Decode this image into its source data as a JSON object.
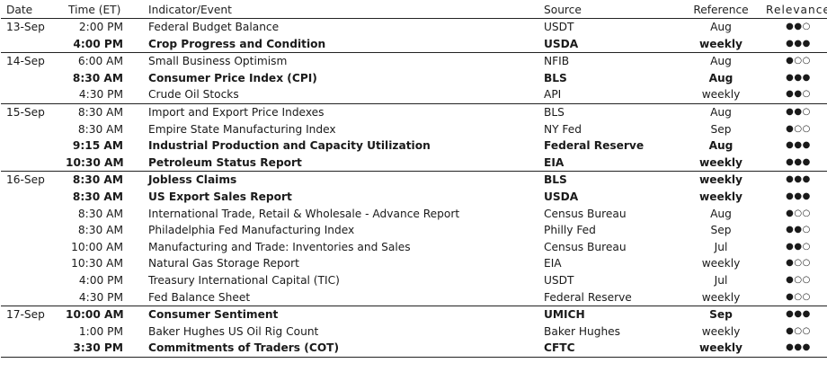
{
  "columns": {
    "date": "Date",
    "time": "Time (ET)",
    "indicator": "Indicator/Event",
    "source": "Source",
    "reference": "Reference",
    "relevance": "Relevance"
  },
  "rows": [
    {
      "date": "13-Sep",
      "time": "2:00 PM",
      "indicator": "Federal Budget Balance",
      "source": "USDT",
      "reference": "Aug",
      "relevance": "●●○",
      "bold": false,
      "group_start": true
    },
    {
      "date": "",
      "time": "4:00 PM",
      "indicator": "Crop Progress and Condition",
      "source": "USDA",
      "reference": "weekly",
      "relevance": "●●●",
      "bold": true,
      "group_start": false
    },
    {
      "date": "14-Sep",
      "time": "6:00 AM",
      "indicator": "Small Business Optimism",
      "source": "NFIB",
      "reference": "Aug",
      "relevance": "●○○",
      "bold": false,
      "group_start": true
    },
    {
      "date": "",
      "time": "8:30 AM",
      "indicator": "Consumer Price Index (CPI)",
      "source": "BLS",
      "reference": "Aug",
      "relevance": "●●●",
      "bold": true,
      "group_start": false
    },
    {
      "date": "",
      "time": "4:30 PM",
      "indicator": "Crude Oil Stocks",
      "source": "API",
      "reference": "weekly",
      "relevance": "●●○",
      "bold": false,
      "group_start": false
    },
    {
      "date": "15-Sep",
      "time": "8:30 AM",
      "indicator": "Import and Export Price Indexes",
      "source": "BLS",
      "reference": "Aug",
      "relevance": "●●○",
      "bold": false,
      "group_start": true
    },
    {
      "date": "",
      "time": "8:30 AM",
      "indicator": "Empire State Manufacturing Index",
      "source": "NY Fed",
      "reference": "Sep",
      "relevance": "●○○",
      "bold": false,
      "group_start": false
    },
    {
      "date": "",
      "time": "9:15 AM",
      "indicator": "Industrial Production and Capacity Utilization",
      "source": "Federal Reserve",
      "reference": "Aug",
      "relevance": "●●●",
      "bold": true,
      "group_start": false
    },
    {
      "date": "",
      "time": "10:30 AM",
      "indicator": "Petroleum Status Report",
      "source": "EIA",
      "reference": "weekly",
      "relevance": "●●●",
      "bold": true,
      "group_start": false
    },
    {
      "date": "16-Sep",
      "time": "8:30 AM",
      "indicator": "Jobless Claims",
      "source": "BLS",
      "reference": "weekly",
      "relevance": "●●●",
      "bold": true,
      "group_start": true
    },
    {
      "date": "",
      "time": "8:30 AM",
      "indicator": "US Export Sales Report",
      "source": "USDA",
      "reference": "weekly",
      "relevance": "●●●",
      "bold": true,
      "group_start": false
    },
    {
      "date": "",
      "time": "8:30 AM",
      "indicator": "International Trade, Retail & Wholesale - Advance Report",
      "source": "Census Bureau",
      "reference": "Aug",
      "relevance": "●○○",
      "bold": false,
      "group_start": false
    },
    {
      "date": "",
      "time": "8:30 AM",
      "indicator": "Philadelphia Fed Manufacturing Index",
      "source": "Philly Fed",
      "reference": "Sep",
      "relevance": "●●○",
      "bold": false,
      "group_start": false
    },
    {
      "date": "",
      "time": "10:00 AM",
      "indicator": "Manufacturing and Trade: Inventories and Sales",
      "source": "Census Bureau",
      "reference": "Jul",
      "relevance": "●●○",
      "bold": false,
      "group_start": false
    },
    {
      "date": "",
      "time": "10:30 AM",
      "indicator": "Natural Gas Storage Report",
      "source": "EIA",
      "reference": "weekly",
      "relevance": "●○○",
      "bold": false,
      "group_start": false
    },
    {
      "date": "",
      "time": "4:00 PM",
      "indicator": "Treasury International Capital (TIC)",
      "source": "USDT",
      "reference": "Jul",
      "relevance": "●○○",
      "bold": false,
      "group_start": false
    },
    {
      "date": "",
      "time": "4:30 PM",
      "indicator": "Fed Balance Sheet",
      "source": "Federal Reserve",
      "reference": "weekly",
      "relevance": "●○○",
      "bold": false,
      "group_start": false
    },
    {
      "date": "17-Sep",
      "time": "10:00 AM",
      "indicator": "Consumer Sentiment",
      "source": "UMICH",
      "reference": "Sep",
      "relevance": "●●●",
      "bold": true,
      "group_start": true
    },
    {
      "date": "",
      "time": "1:00 PM",
      "indicator": "Baker Hughes US Oil Rig Count",
      "source": "Baker Hughes",
      "reference": "weekly",
      "relevance": "●○○",
      "bold": false,
      "group_start": false
    },
    {
      "date": "",
      "time": "3:30 PM",
      "indicator": "Commitments of Traders (COT)",
      "source": "CFTC",
      "reference": "weekly",
      "relevance": "●●●",
      "bold": true,
      "group_start": false
    }
  ]
}
